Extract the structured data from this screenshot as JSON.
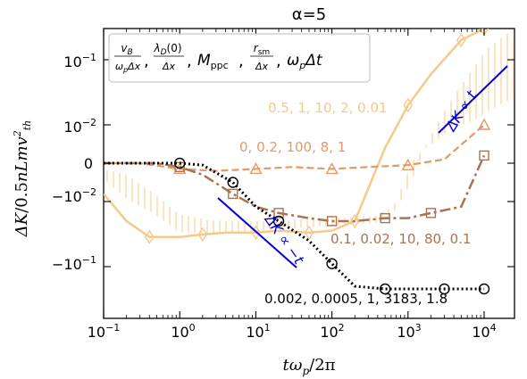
{
  "chart_data": {
    "type": "line",
    "title": "α=5",
    "xlabel": "tω_p/2π",
    "ylabel": "ΔK/0.5nLmv²_th",
    "xscale": "log",
    "yscale": "symlog",
    "xlim": [
      0.1,
      15000
    ],
    "x_ticks": [
      "10^-1",
      "10^0",
      "10^1",
      "10^2",
      "10^3",
      "10^4"
    ],
    "y_ticks": [
      "10^-1",
      "10^-2",
      "0",
      "-10^-2",
      "-10^-1"
    ],
    "legend_header": "v_B/(ω_p Δx), λ_D(0)/Δx, M_ppc, r_sm/Δx, ω_p Δt",
    "colors": {
      "light": "#f5c98a",
      "medium": "#e29a66",
      "dark": "#a9734f",
      "black": "#000000",
      "fit": "#0000dd"
    },
    "series": [
      {
        "name": "0.5, 1, 10, 2, 0.01",
        "color": "light",
        "marker": "diamond",
        "x": [
          0.1,
          0.2,
          0.4,
          1,
          2,
          4,
          10,
          20,
          50,
          100,
          200,
          500,
          1000,
          2000,
          5000,
          10000
        ],
        "y": [
          -0.008,
          -0.02,
          -0.035,
          -0.035,
          -0.032,
          -0.03,
          -0.03,
          -0.028,
          -0.03,
          -0.028,
          -0.02,
          0.004,
          0.02,
          0.06,
          0.2,
          0.3
        ]
      },
      {
        "name": "0, 0.2, 100, 8, 1",
        "color": "medium",
        "marker": "triangle",
        "x": [
          0.1,
          0.3,
          1,
          3,
          10,
          30,
          100,
          300,
          1000,
          3000,
          10000
        ],
        "y": [
          0,
          0,
          -0.0015,
          -0.002,
          -0.0015,
          -0.001,
          -0.0015,
          -0.001,
          -0.0005,
          0.001,
          0.01
        ]
      },
      {
        "name": "0.1, 0.02, 10, 80, 0.1",
        "color": "dark",
        "marker": "square",
        "x": [
          0.1,
          0.5,
          1,
          2,
          5,
          10,
          20,
          50,
          100,
          200,
          500,
          1000,
          2000,
          5000,
          10000
        ],
        "y": [
          0,
          0,
          -0.001,
          -0.003,
          -0.008,
          -0.012,
          -0.015,
          -0.018,
          -0.02,
          -0.02,
          -0.018,
          -0.018,
          -0.015,
          -0.012,
          0.002
        ]
      },
      {
        "name": "0.002, 0.0005, 1, 3183, 1.8",
        "color": "black",
        "marker": "circle",
        "x": [
          0.1,
          0.5,
          1,
          2,
          5,
          10,
          20,
          50,
          100,
          200,
          500,
          1000,
          3000,
          10000
        ],
        "y": [
          0,
          0,
          0,
          -0.0005,
          -0.005,
          -0.012,
          -0.02,
          -0.04,
          -0.09,
          -0.2,
          -0.22,
          -0.22,
          -0.22,
          -0.22
        ]
      }
    ],
    "annotations": [
      {
        "text": "0.5, 1, 10, 2, 0.01",
        "color": "light"
      },
      {
        "text": "0, 0.2, 100, 8, 1",
        "color": "medium"
      },
      {
        "text": "0.1, 0.02, 10, 80, 0.1",
        "color": "dark"
      },
      {
        "text": "0.002, 0.0005, 1, 3183, 1.8",
        "color": "black"
      }
    ],
    "fit_labels": [
      "ΔK ∝ t",
      "ΔK ∝ −t"
    ]
  }
}
